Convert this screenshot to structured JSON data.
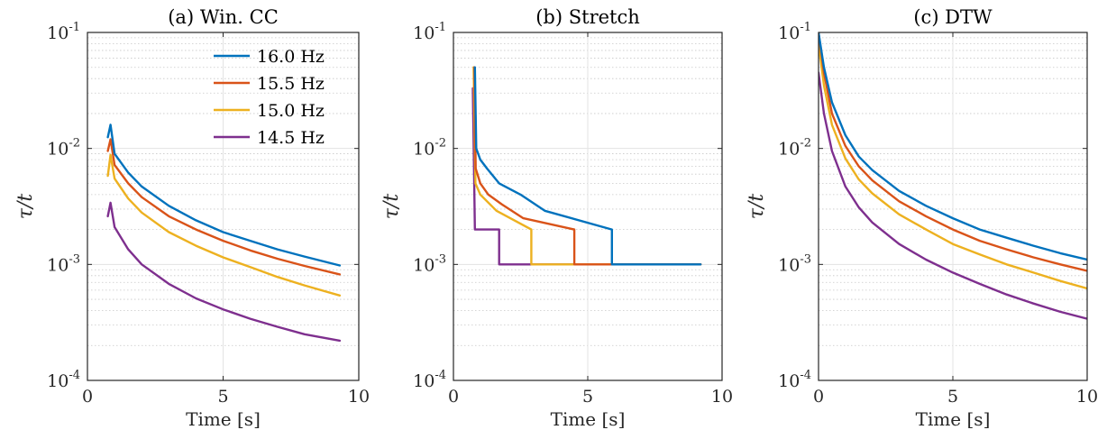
{
  "figure": {
    "ylabel": "τ/t",
    "xlabel": "Time [s]"
  },
  "colors": {
    "16.0 Hz": "#0072BD",
    "15.5 Hz": "#D95319",
    "15.0 Hz": "#EDB120",
    "14.5 Hz": "#7E2F8E"
  },
  "chart_data": [
    {
      "type": "line",
      "title": "(a) Win. CC",
      "xlabel": "Time [s]",
      "ylabel": "τ/t",
      "xlim": [
        0,
        10
      ],
      "ylim": [
        0.0001,
        0.1
      ],
      "yscale": "log",
      "xticks": [
        0,
        5,
        10
      ],
      "yticks": [
        0.0001,
        0.001,
        0.01,
        0.1
      ],
      "ytick_labels": [
        [
          "10",
          "-4"
        ],
        [
          "10",
          "-3"
        ],
        [
          "10",
          "-2"
        ],
        [
          "10",
          "-1"
        ]
      ],
      "grid": true,
      "legend": "top-right",
      "series": [
        {
          "name": "16.0 Hz",
          "values_desc": "smooth decay",
          "x": [
            0.75,
            0.85,
            1.0,
            1.5,
            2.0,
            3.0,
            4.0,
            5.0,
            6.0,
            7.0,
            8.0,
            9.3
          ],
          "y": [
            0.0125,
            0.016,
            0.009,
            0.0062,
            0.0047,
            0.0032,
            0.0024,
            0.0019,
            0.0016,
            0.00135,
            0.00117,
            0.00098
          ]
        },
        {
          "name": "15.5 Hz",
          "x": [
            0.75,
            0.85,
            1.0,
            1.5,
            2.0,
            3.0,
            4.0,
            5.0,
            6.0,
            7.0,
            8.0,
            9.3
          ],
          "y": [
            0.0095,
            0.012,
            0.0072,
            0.005,
            0.0038,
            0.0026,
            0.002,
            0.0016,
            0.00132,
            0.00112,
            0.00097,
            0.00082
          ]
        },
        {
          "name": "15.0 Hz",
          "x": [
            0.75,
            0.85,
            1.0,
            1.5,
            2.0,
            3.0,
            4.0,
            5.0,
            6.0,
            7.0,
            8.0,
            9.3
          ],
          "y": [
            0.0058,
            0.0088,
            0.0055,
            0.0037,
            0.0028,
            0.0019,
            0.00145,
            0.00115,
            0.00095,
            0.00078,
            0.00066,
            0.00054
          ]
        },
        {
          "name": "14.5 Hz",
          "x": [
            0.75,
            0.85,
            1.0,
            1.5,
            2.0,
            3.0,
            4.0,
            5.0,
            6.0,
            7.0,
            8.0,
            9.3
          ],
          "y": [
            0.0026,
            0.0034,
            0.0021,
            0.00135,
            0.001,
            0.00068,
            0.00051,
            0.00041,
            0.00034,
            0.00029,
            0.00025,
            0.00022
          ]
        }
      ]
    },
    {
      "type": "line",
      "title": "(b) Stretch",
      "xlabel": "Time [s]",
      "ylabel": "τ/t",
      "xlim": [
        0,
        10
      ],
      "ylim": [
        0.0001,
        0.1
      ],
      "yscale": "log",
      "xticks": [
        0,
        5,
        10
      ],
      "yticks": [
        0.0001,
        0.001,
        0.01,
        0.1
      ],
      "ytick_labels": [
        [
          "10",
          "-4"
        ],
        [
          "10",
          "-3"
        ],
        [
          "10",
          "-2"
        ],
        [
          "10",
          "-1"
        ]
      ],
      "grid": true,
      "series": [
        {
          "name": "16.0 Hz",
          "x": [
            0.8,
            0.85,
            1.0,
            1.25,
            1.7,
            2.5,
            3.4,
            5.9,
            5.9,
            9.2
          ],
          "y": [
            0.05,
            0.01,
            0.008,
            0.0067,
            0.005,
            0.004,
            0.0029,
            0.002,
            0.001,
            0.001
          ]
        },
        {
          "name": "15.5 Hz",
          "x": [
            0.78,
            0.83,
            1.0,
            1.3,
            1.8,
            2.6,
            4.5,
            4.5,
            9.2
          ],
          "y": [
            0.05,
            0.0067,
            0.005,
            0.004,
            0.0033,
            0.0025,
            0.002,
            0.001,
            0.001
          ]
        },
        {
          "name": "15.0 Hz",
          "x": [
            0.75,
            0.82,
            1.0,
            1.6,
            2.9,
            2.9,
            9.2
          ],
          "y": [
            0.05,
            0.005,
            0.004,
            0.0029,
            0.002,
            0.001,
            0.001
          ]
        },
        {
          "name": "14.5 Hz",
          "x": [
            0.72,
            0.8,
            1.7,
            1.7,
            4.5
          ],
          "y": [
            0.033,
            0.002,
            0.002,
            0.001,
            0.001
          ]
        }
      ]
    },
    {
      "type": "line",
      "title": "(c) DTW",
      "xlabel": "Time [s]",
      "ylabel": "τ/t",
      "xlim": [
        0,
        10
      ],
      "ylim": [
        0.0001,
        0.1
      ],
      "yscale": "log",
      "xticks": [
        0,
        5,
        10
      ],
      "yticks": [
        0.0001,
        0.001,
        0.01,
        0.1
      ],
      "ytick_labels": [
        [
          "10",
          "-4"
        ],
        [
          "10",
          "-3"
        ],
        [
          "10",
          "-2"
        ],
        [
          "10",
          "-1"
        ]
      ],
      "grid": true,
      "series": [
        {
          "name": "16.0 Hz",
          "x": [
            0.0,
            0.2,
            0.5,
            1.0,
            1.5,
            2.0,
            3.0,
            4.0,
            5.0,
            6.0,
            7.0,
            8.0,
            9.0,
            10.0
          ],
          "y": [
            0.1,
            0.05,
            0.025,
            0.013,
            0.0085,
            0.0065,
            0.0043,
            0.0032,
            0.0025,
            0.002,
            0.0017,
            0.00145,
            0.00125,
            0.0011
          ]
        },
        {
          "name": "15.5 Hz",
          "x": [
            0.0,
            0.2,
            0.5,
            1.0,
            1.5,
            2.0,
            3.0,
            4.0,
            5.0,
            6.0,
            7.0,
            8.0,
            9.0,
            10.0
          ],
          "y": [
            0.1,
            0.045,
            0.02,
            0.0105,
            0.007,
            0.0053,
            0.0035,
            0.0026,
            0.002,
            0.0016,
            0.00135,
            0.00115,
            0.001,
            0.00088
          ]
        },
        {
          "name": "15.0 Hz",
          "x": [
            0.0,
            0.2,
            0.5,
            1.0,
            1.5,
            2.0,
            3.0,
            4.0,
            5.0,
            6.0,
            7.0,
            8.0,
            9.0,
            10.0
          ],
          "y": [
            0.08,
            0.035,
            0.016,
            0.0082,
            0.0054,
            0.0041,
            0.0027,
            0.002,
            0.0015,
            0.00122,
            0.001,
            0.00085,
            0.00072,
            0.00062
          ]
        },
        {
          "name": "14.5 Hz",
          "x": [
            0.0,
            0.2,
            0.5,
            1.0,
            1.5,
            2.0,
            3.0,
            4.0,
            5.0,
            6.0,
            7.0,
            8.0,
            9.0,
            10.0
          ],
          "y": [
            0.045,
            0.02,
            0.0095,
            0.0047,
            0.0031,
            0.0023,
            0.0015,
            0.0011,
            0.00085,
            0.00068,
            0.00055,
            0.00046,
            0.00039,
            0.00034
          ]
        }
      ]
    }
  ]
}
